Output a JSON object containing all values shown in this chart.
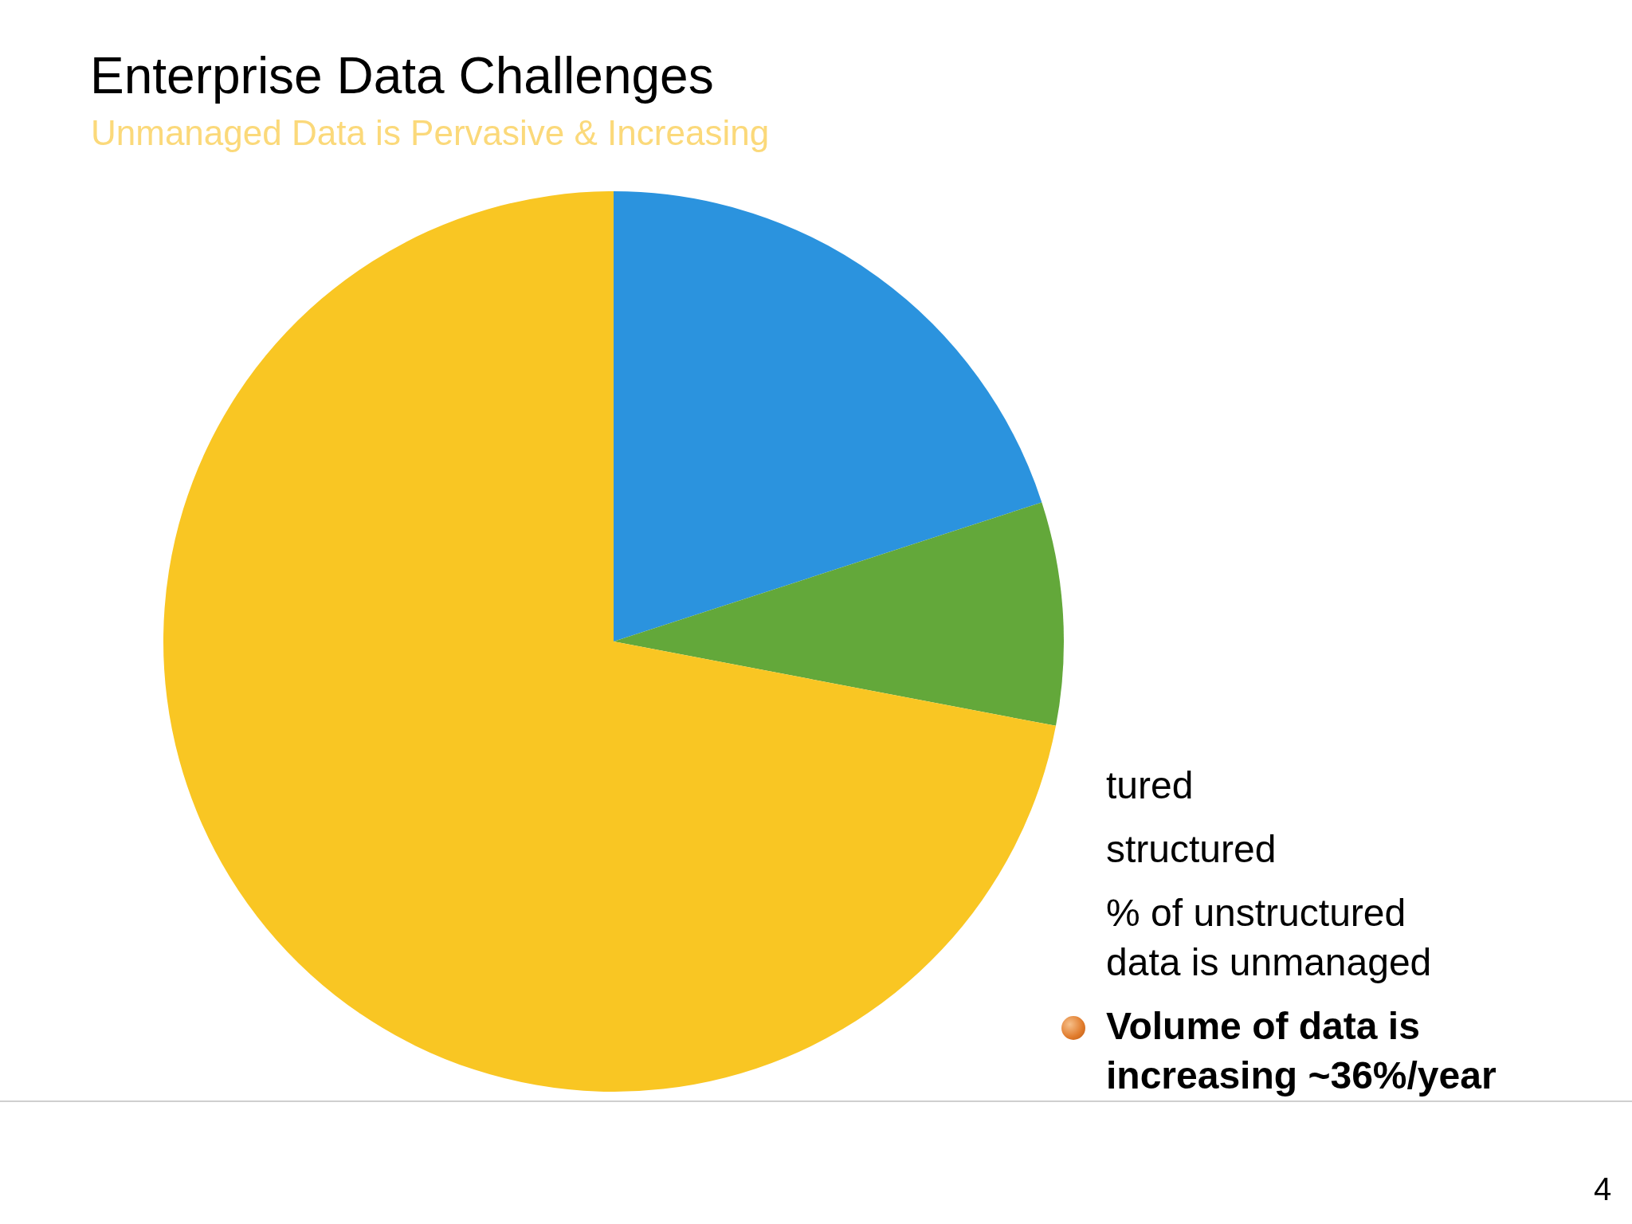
{
  "chart_data": {
    "type": "pie",
    "title": "Enterprise Data Challenges",
    "subtitle": "Unmanaged Data is Pervasive & Increasing",
    "categories": [
      null,
      null,
      null
    ],
    "values": [
      20,
      8,
      72
    ],
    "colors": [
      "#2b93de",
      "#63a83a",
      "#f9c623"
    ],
    "annotations": [
      "tured",
      "structured",
      "% of unstructured data is unmanaged",
      "Volume of data is increasing ~36%/year",
      "4"
    ]
  }
}
